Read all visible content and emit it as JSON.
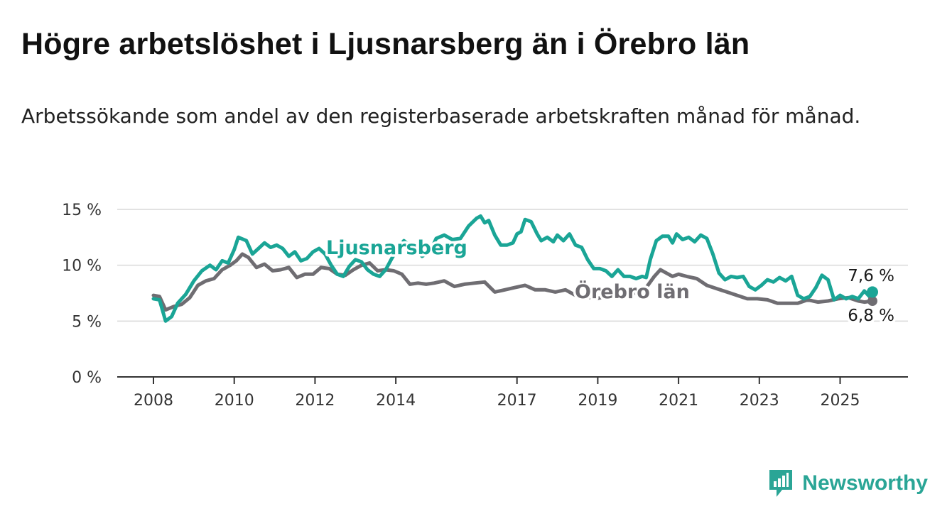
{
  "header": {
    "title": "Högre arbetslöshet i Ljusnarsberg än i Örebro län",
    "subtitle": "Arbetssökande som andel av den registerbaserade arbetskraften månad för månad."
  },
  "brand": {
    "name": "Newsworthy",
    "icon": "newsworthy-logo-icon",
    "color": "#2aa596"
  },
  "chart_data": {
    "type": "line",
    "title": "Högre arbetslöshet i Ljusnarsberg än i Örebro län",
    "subtitle": "Arbetssökande som andel av den registerbaserade arbetskraften månad för månad.",
    "xlabel": "",
    "ylabel": "",
    "xlim": [
      2008,
      2025.8
    ],
    "ylim": [
      0,
      15
    ],
    "y_ticks": [
      0,
      5,
      10,
      15
    ],
    "y_tick_labels": [
      "0 %",
      "5 %",
      "10 %",
      "15 %"
    ],
    "x_ticks": [
      2008,
      2010,
      2012,
      2014,
      2017,
      2019,
      2021,
      2023,
      2025
    ],
    "x_tick_labels": [
      "2008",
      "2010",
      "2012",
      "2014",
      "2017",
      "2019",
      "2021",
      "2023",
      "2025"
    ],
    "grid": true,
    "legend": "inline labels on lines",
    "series": [
      {
        "name": "Ljusnarsberg",
        "color": "#1aa596",
        "end_label": "7,6 %",
        "points": [
          [
            2008.0,
            7.0
          ],
          [
            2008.15,
            6.9
          ],
          [
            2008.3,
            5.0
          ],
          [
            2008.45,
            5.4
          ],
          [
            2008.6,
            6.6
          ],
          [
            2008.8,
            7.4
          ],
          [
            2009.0,
            8.6
          ],
          [
            2009.2,
            9.5
          ],
          [
            2009.4,
            10.0
          ],
          [
            2009.55,
            9.6
          ],
          [
            2009.7,
            10.4
          ],
          [
            2009.85,
            10.2
          ],
          [
            2010.0,
            11.4
          ],
          [
            2010.1,
            12.5
          ],
          [
            2010.3,
            12.2
          ],
          [
            2010.45,
            11.0
          ],
          [
            2010.6,
            11.5
          ],
          [
            2010.75,
            12.0
          ],
          [
            2010.9,
            11.6
          ],
          [
            2011.05,
            11.8
          ],
          [
            2011.2,
            11.5
          ],
          [
            2011.35,
            10.8
          ],
          [
            2011.5,
            11.2
          ],
          [
            2011.65,
            10.4
          ],
          [
            2011.8,
            10.6
          ],
          [
            2011.95,
            11.2
          ],
          [
            2012.1,
            11.5
          ],
          [
            2012.25,
            11.0
          ],
          [
            2012.4,
            10.0
          ],
          [
            2012.55,
            9.2
          ],
          [
            2012.7,
            9.0
          ],
          [
            2012.85,
            9.9
          ],
          [
            2013.0,
            10.5
          ],
          [
            2013.15,
            10.3
          ],
          [
            2013.3,
            9.6
          ],
          [
            2013.45,
            9.2
          ],
          [
            2013.6,
            9.0
          ],
          [
            2013.75,
            9.6
          ],
          [
            2013.9,
            10.6
          ],
          [
            2014.05,
            11.5
          ],
          [
            2014.2,
            12.2
          ],
          [
            2014.35,
            11.7
          ],
          [
            2014.5,
            11.5
          ],
          [
            2014.65,
            10.8
          ],
          [
            2014.85,
            11.2
          ],
          [
            2015.0,
            12.4
          ],
          [
            2015.2,
            12.7
          ],
          [
            2015.4,
            12.3
          ],
          [
            2015.6,
            12.4
          ],
          [
            2015.8,
            13.5
          ],
          [
            2016.0,
            14.2
          ],
          [
            2016.1,
            14.4
          ],
          [
            2016.2,
            13.8
          ],
          [
            2016.3,
            14.0
          ],
          [
            2016.45,
            12.7
          ],
          [
            2016.6,
            11.8
          ],
          [
            2016.75,
            11.8
          ],
          [
            2016.9,
            12.0
          ],
          [
            2017.0,
            12.8
          ],
          [
            2017.1,
            13.0
          ],
          [
            2017.2,
            14.1
          ],
          [
            2017.35,
            13.9
          ],
          [
            2017.5,
            12.8
          ],
          [
            2017.6,
            12.2
          ],
          [
            2017.75,
            12.5
          ],
          [
            2017.9,
            12.1
          ],
          [
            2018.0,
            12.7
          ],
          [
            2018.15,
            12.2
          ],
          [
            2018.3,
            12.8
          ],
          [
            2018.45,
            11.8
          ],
          [
            2018.6,
            11.6
          ],
          [
            2018.75,
            10.5
          ],
          [
            2018.9,
            9.7
          ],
          [
            2019.05,
            9.7
          ],
          [
            2019.2,
            9.5
          ],
          [
            2019.35,
            9.0
          ],
          [
            2019.5,
            9.6
          ],
          [
            2019.65,
            9.0
          ],
          [
            2019.8,
            9.0
          ],
          [
            2019.95,
            8.8
          ],
          [
            2020.1,
            9.0
          ],
          [
            2020.2,
            8.9
          ],
          [
            2020.3,
            10.5
          ],
          [
            2020.45,
            12.2
          ],
          [
            2020.6,
            12.6
          ],
          [
            2020.75,
            12.6
          ],
          [
            2020.85,
            12.0
          ],
          [
            2020.95,
            12.8
          ],
          [
            2021.1,
            12.3
          ],
          [
            2021.25,
            12.5
          ],
          [
            2021.4,
            12.1
          ],
          [
            2021.55,
            12.7
          ],
          [
            2021.7,
            12.4
          ],
          [
            2021.85,
            11.0
          ],
          [
            2022.0,
            9.3
          ],
          [
            2022.15,
            8.7
          ],
          [
            2022.3,
            9.0
          ],
          [
            2022.45,
            8.9
          ],
          [
            2022.6,
            9.0
          ],
          [
            2022.75,
            8.1
          ],
          [
            2022.9,
            7.8
          ],
          [
            2023.05,
            8.2
          ],
          [
            2023.2,
            8.7
          ],
          [
            2023.35,
            8.5
          ],
          [
            2023.5,
            8.9
          ],
          [
            2023.65,
            8.6
          ],
          [
            2023.8,
            9.0
          ],
          [
            2023.95,
            7.3
          ],
          [
            2024.1,
            7.0
          ],
          [
            2024.25,
            7.2
          ],
          [
            2024.4,
            8.0
          ],
          [
            2024.55,
            9.1
          ],
          [
            2024.7,
            8.7
          ],
          [
            2024.85,
            6.9
          ],
          [
            2025.0,
            7.3
          ],
          [
            2025.15,
            7.0
          ],
          [
            2025.3,
            7.2
          ],
          [
            2025.45,
            7.0
          ],
          [
            2025.6,
            7.7
          ],
          [
            2025.75,
            7.1
          ],
          [
            2025.8,
            7.6
          ]
        ]
      },
      {
        "name": "Örebro län",
        "color": "#6f6d72",
        "end_label": "6,8 %",
        "points": [
          [
            2008.0,
            7.3
          ],
          [
            2008.15,
            7.2
          ],
          [
            2008.3,
            6.0
          ],
          [
            2008.5,
            6.3
          ],
          [
            2008.7,
            6.5
          ],
          [
            2008.9,
            7.1
          ],
          [
            2009.1,
            8.2
          ],
          [
            2009.3,
            8.6
          ],
          [
            2009.5,
            8.8
          ],
          [
            2009.7,
            9.6
          ],
          [
            2009.9,
            10.0
          ],
          [
            2010.05,
            10.4
          ],
          [
            2010.2,
            11.0
          ],
          [
            2010.35,
            10.7
          ],
          [
            2010.55,
            9.8
          ],
          [
            2010.75,
            10.1
          ],
          [
            2010.95,
            9.5
          ],
          [
            2011.15,
            9.6
          ],
          [
            2011.35,
            9.8
          ],
          [
            2011.55,
            8.9
          ],
          [
            2011.75,
            9.2
          ],
          [
            2011.95,
            9.2
          ],
          [
            2012.15,
            9.8
          ],
          [
            2012.35,
            9.7
          ],
          [
            2012.55,
            9.2
          ],
          [
            2012.75,
            9.1
          ],
          [
            2012.95,
            9.6
          ],
          [
            2013.15,
            10.0
          ],
          [
            2013.35,
            10.2
          ],
          [
            2013.55,
            9.5
          ],
          [
            2013.75,
            9.6
          ],
          [
            2013.95,
            9.5
          ],
          [
            2014.15,
            9.2
          ],
          [
            2014.35,
            8.3
          ],
          [
            2014.55,
            8.4
          ],
          [
            2014.75,
            8.3
          ],
          [
            2014.95,
            8.4
          ],
          [
            2015.2,
            8.6
          ],
          [
            2015.45,
            8.1
          ],
          [
            2015.7,
            8.3
          ],
          [
            2015.95,
            8.4
          ],
          [
            2016.2,
            8.5
          ],
          [
            2016.45,
            7.6
          ],
          [
            2016.7,
            7.8
          ],
          [
            2016.95,
            8.0
          ],
          [
            2017.2,
            8.2
          ],
          [
            2017.45,
            7.8
          ],
          [
            2017.7,
            7.8
          ],
          [
            2017.95,
            7.6
          ],
          [
            2018.2,
            7.8
          ],
          [
            2018.45,
            7.3
          ],
          [
            2018.7,
            7.2
          ],
          [
            2018.95,
            7.0
          ],
          [
            2019.2,
            7.2
          ],
          [
            2019.45,
            7.3
          ],
          [
            2019.7,
            7.5
          ],
          [
            2019.95,
            7.5
          ],
          [
            2020.2,
            8.0
          ],
          [
            2020.4,
            9.0
          ],
          [
            2020.55,
            9.6
          ],
          [
            2020.7,
            9.3
          ],
          [
            2020.85,
            9.0
          ],
          [
            2021.0,
            9.2
          ],
          [
            2021.2,
            9.0
          ],
          [
            2021.45,
            8.8
          ],
          [
            2021.7,
            8.2
          ],
          [
            2021.95,
            7.9
          ],
          [
            2022.2,
            7.6
          ],
          [
            2022.45,
            7.3
          ],
          [
            2022.7,
            7.0
          ],
          [
            2022.95,
            7.0
          ],
          [
            2023.2,
            6.9
          ],
          [
            2023.45,
            6.6
          ],
          [
            2023.7,
            6.6
          ],
          [
            2023.95,
            6.6
          ],
          [
            2024.2,
            6.9
          ],
          [
            2024.45,
            6.7
          ],
          [
            2024.7,
            6.8
          ],
          [
            2024.95,
            7.0
          ],
          [
            2025.2,
            7.1
          ],
          [
            2025.45,
            6.8
          ],
          [
            2025.6,
            6.7
          ],
          [
            2025.8,
            6.8
          ]
        ]
      }
    ]
  }
}
